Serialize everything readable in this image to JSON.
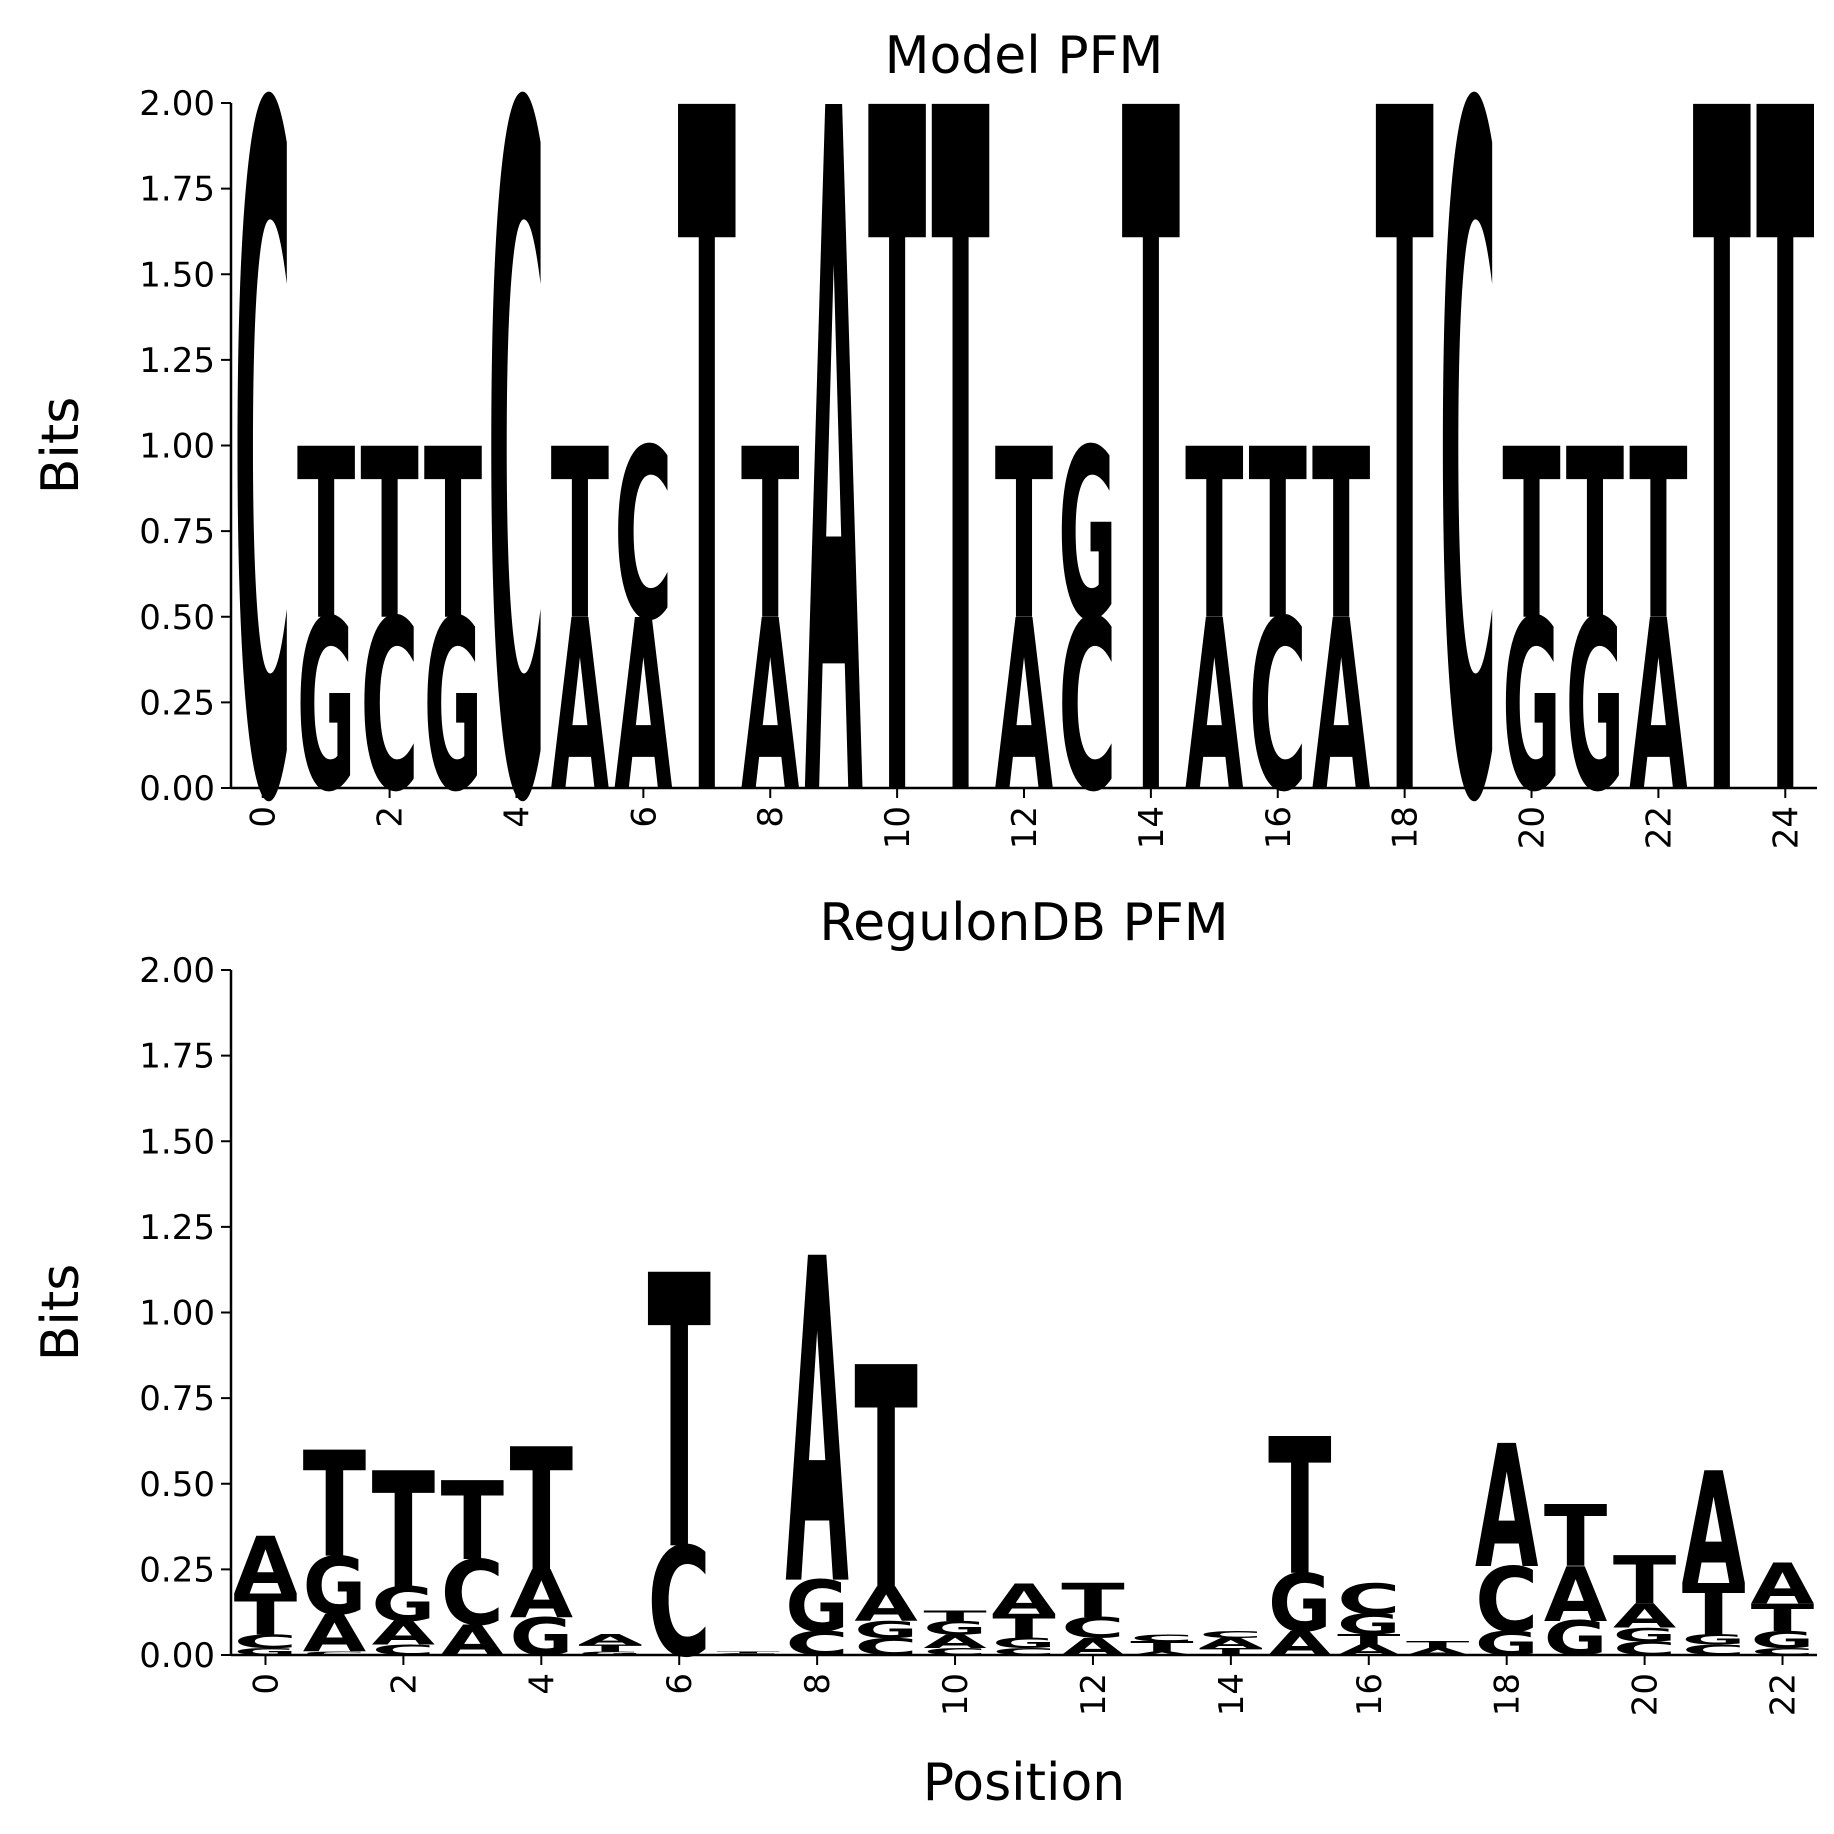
{
  "figure": {
    "xlabel": "Position",
    "ylabel": "Bits",
    "colors": {
      "A": "#ff0000",
      "C": "#0000ff",
      "G": "#ffa500",
      "T": "#008000"
    }
  },
  "chart_data": [
    {
      "type": "sequence-logo",
      "title": "Model PFM",
      "xlabel": "",
      "ylabel": "Bits",
      "ylim": [
        0,
        2
      ],
      "yticks": [
        "0.00",
        "0.25",
        "0.50",
        "0.75",
        "1.00",
        "1.25",
        "1.50",
        "1.75",
        "2.00"
      ],
      "xticks": [
        0,
        2,
        4,
        6,
        8,
        10,
        12,
        14,
        16,
        18,
        20,
        22,
        24
      ],
      "grid": false,
      "positions": [
        {
          "x": 0,
          "stack": [
            [
              "C",
              2.0
            ]
          ]
        },
        {
          "x": 1,
          "stack": [
            [
              "G",
              0.5
            ],
            [
              "T",
              0.5
            ]
          ]
        },
        {
          "x": 2,
          "stack": [
            [
              "C",
              0.5
            ],
            [
              "T",
              0.5
            ]
          ]
        },
        {
          "x": 3,
          "stack": [
            [
              "G",
              0.5
            ],
            [
              "T",
              0.5
            ]
          ]
        },
        {
          "x": 4,
          "stack": [
            [
              "C",
              2.0
            ]
          ]
        },
        {
          "x": 5,
          "stack": [
            [
              "A",
              0.5
            ],
            [
              "T",
              0.5
            ]
          ]
        },
        {
          "x": 6,
          "stack": [
            [
              "A",
              0.5
            ],
            [
              "C",
              0.5
            ]
          ]
        },
        {
          "x": 7,
          "stack": [
            [
              "T",
              2.0
            ]
          ]
        },
        {
          "x": 8,
          "stack": [
            [
              "A",
              0.5
            ],
            [
              "T",
              0.5
            ]
          ]
        },
        {
          "x": 9,
          "stack": [
            [
              "A",
              2.0
            ]
          ]
        },
        {
          "x": 10,
          "stack": [
            [
              "T",
              2.0
            ]
          ]
        },
        {
          "x": 11,
          "stack": [
            [
              "T",
              2.0
            ]
          ]
        },
        {
          "x": 12,
          "stack": [
            [
              "A",
              0.5
            ],
            [
              "T",
              0.5
            ]
          ]
        },
        {
          "x": 13,
          "stack": [
            [
              "C",
              0.5
            ],
            [
              "G",
              0.5
            ]
          ]
        },
        {
          "x": 14,
          "stack": [
            [
              "T",
              2.0
            ]
          ]
        },
        {
          "x": 15,
          "stack": [
            [
              "A",
              0.5
            ],
            [
              "T",
              0.5
            ]
          ]
        },
        {
          "x": 16,
          "stack": [
            [
              "C",
              0.5
            ],
            [
              "T",
              0.5
            ]
          ]
        },
        {
          "x": 17,
          "stack": [
            [
              "A",
              0.5
            ],
            [
              "T",
              0.5
            ]
          ]
        },
        {
          "x": 18,
          "stack": [
            [
              "T",
              2.0
            ]
          ]
        },
        {
          "x": 19,
          "stack": [
            [
              "C",
              2.0
            ]
          ]
        },
        {
          "x": 20,
          "stack": [
            [
              "G",
              0.5
            ],
            [
              "T",
              0.5
            ]
          ]
        },
        {
          "x": 21,
          "stack": [
            [
              "G",
              0.5
            ],
            [
              "T",
              0.5
            ]
          ]
        },
        {
          "x": 22,
          "stack": [
            [
              "A",
              0.5
            ],
            [
              "T",
              0.5
            ]
          ]
        },
        {
          "x": 23,
          "stack": [
            [
              "T",
              2.0
            ]
          ]
        },
        {
          "x": 24,
          "stack": [
            [
              "T",
              2.0
            ]
          ]
        }
      ]
    },
    {
      "type": "sequence-logo",
      "title": "RegulonDB PFM",
      "xlabel": "Position",
      "ylabel": "Bits",
      "ylim": [
        0,
        2
      ],
      "yticks": [
        "0.00",
        "0.25",
        "0.50",
        "0.75",
        "1.00",
        "1.25",
        "1.50",
        "1.75",
        "2.00"
      ],
      "xticks": [
        0,
        2,
        4,
        6,
        8,
        10,
        12,
        14,
        16,
        18,
        20,
        22
      ],
      "grid": false,
      "positions": [
        {
          "x": 0,
          "stack": [
            [
              "G",
              0.02
            ],
            [
              "C",
              0.04
            ],
            [
              "T",
              0.12
            ],
            [
              "A",
              0.17
            ]
          ]
        },
        {
          "x": 1,
          "stack": [
            [
              "C",
              0.01
            ],
            [
              "A",
              0.11
            ],
            [
              "G",
              0.17
            ],
            [
              "T",
              0.31
            ]
          ]
        },
        {
          "x": 2,
          "stack": [
            [
              "C",
              0.03
            ],
            [
              "A",
              0.07
            ],
            [
              "G",
              0.1
            ],
            [
              "T",
              0.34
            ]
          ]
        },
        {
          "x": 3,
          "stack": [
            [
              "A",
              0.09
            ],
            [
              "C",
              0.19
            ],
            [
              "T",
              0.23
            ]
          ]
        },
        {
          "x": 4,
          "stack": [
            [
              "G",
              0.11
            ],
            [
              "A",
              0.14
            ],
            [
              "T",
              0.36
            ]
          ]
        },
        {
          "x": 5,
          "stack": [
            [
              "G",
              0.01
            ],
            [
              "T",
              0.02
            ],
            [
              "A",
              0.03
            ]
          ]
        },
        {
          "x": 6,
          "stack": [
            [
              "C",
              0.32
            ],
            [
              "T",
              0.8
            ]
          ]
        },
        {
          "x": 7,
          "stack": [
            [
              "C",
              0.005
            ],
            [
              "T",
              0.005
            ]
          ]
        },
        {
          "x": 8,
          "stack": [
            [
              "C",
              0.07
            ],
            [
              "G",
              0.15
            ],
            [
              "A",
              0.95
            ]
          ]
        },
        {
          "x": 9,
          "stack": [
            [
              "C",
              0.05
            ],
            [
              "G",
              0.05
            ],
            [
              "A",
              0.1
            ],
            [
              "T",
              0.65
            ]
          ]
        },
        {
          "x": 10,
          "stack": [
            [
              "C",
              0.02
            ],
            [
              "A",
              0.04
            ],
            [
              "G",
              0.04
            ],
            [
              "T",
              0.03
            ]
          ]
        },
        {
          "x": 11,
          "stack": [
            [
              "C",
              0.02
            ],
            [
              "G",
              0.03
            ],
            [
              "T",
              0.07
            ],
            [
              "A",
              0.09
            ]
          ]
        },
        {
          "x": 12,
          "stack": [
            [
              "A",
              0.05
            ],
            [
              "C",
              0.06
            ],
            [
              "T",
              0.1
            ]
          ]
        },
        {
          "x": 13,
          "stack": [
            [
              "A",
              0.01
            ],
            [
              "T",
              0.03
            ],
            [
              "C",
              0.02
            ]
          ]
        },
        {
          "x": 14,
          "stack": [
            [
              "T",
              0.02
            ],
            [
              "A",
              0.03
            ],
            [
              "C",
              0.02
            ]
          ]
        },
        {
          "x": 15,
          "stack": [
            [
              "A",
              0.07
            ],
            [
              "G",
              0.17
            ],
            [
              "T",
              0.4
            ]
          ]
        },
        {
          "x": 16,
          "stack": [
            [
              "A",
              0.03
            ],
            [
              "T",
              0.03
            ],
            [
              "G",
              0.06
            ],
            [
              "C",
              0.09
            ]
          ]
        },
        {
          "x": 17,
          "stack": [
            [
              "A",
              0.02
            ],
            [
              "T",
              0.02
            ]
          ]
        },
        {
          "x": 18,
          "stack": [
            [
              "G",
              0.07
            ],
            [
              "C",
              0.19
            ],
            [
              "A",
              0.36
            ]
          ]
        },
        {
          "x": 19,
          "stack": [
            [
              "G",
              0.1
            ],
            [
              "A",
              0.16
            ],
            [
              "T",
              0.18
            ]
          ]
        },
        {
          "x": 20,
          "stack": [
            [
              "C",
              0.04
            ],
            [
              "G",
              0.04
            ],
            [
              "A",
              0.07
            ],
            [
              "T",
              0.14
            ]
          ]
        },
        {
          "x": 21,
          "stack": [
            [
              "C",
              0.03
            ],
            [
              "G",
              0.03
            ],
            [
              "T",
              0.15
            ],
            [
              "A",
              0.33
            ]
          ]
        },
        {
          "x": 22,
          "stack": [
            [
              "C",
              0.02
            ],
            [
              "G",
              0.05
            ],
            [
              "T",
              0.08
            ],
            [
              "A",
              0.12
            ]
          ]
        }
      ]
    }
  ]
}
